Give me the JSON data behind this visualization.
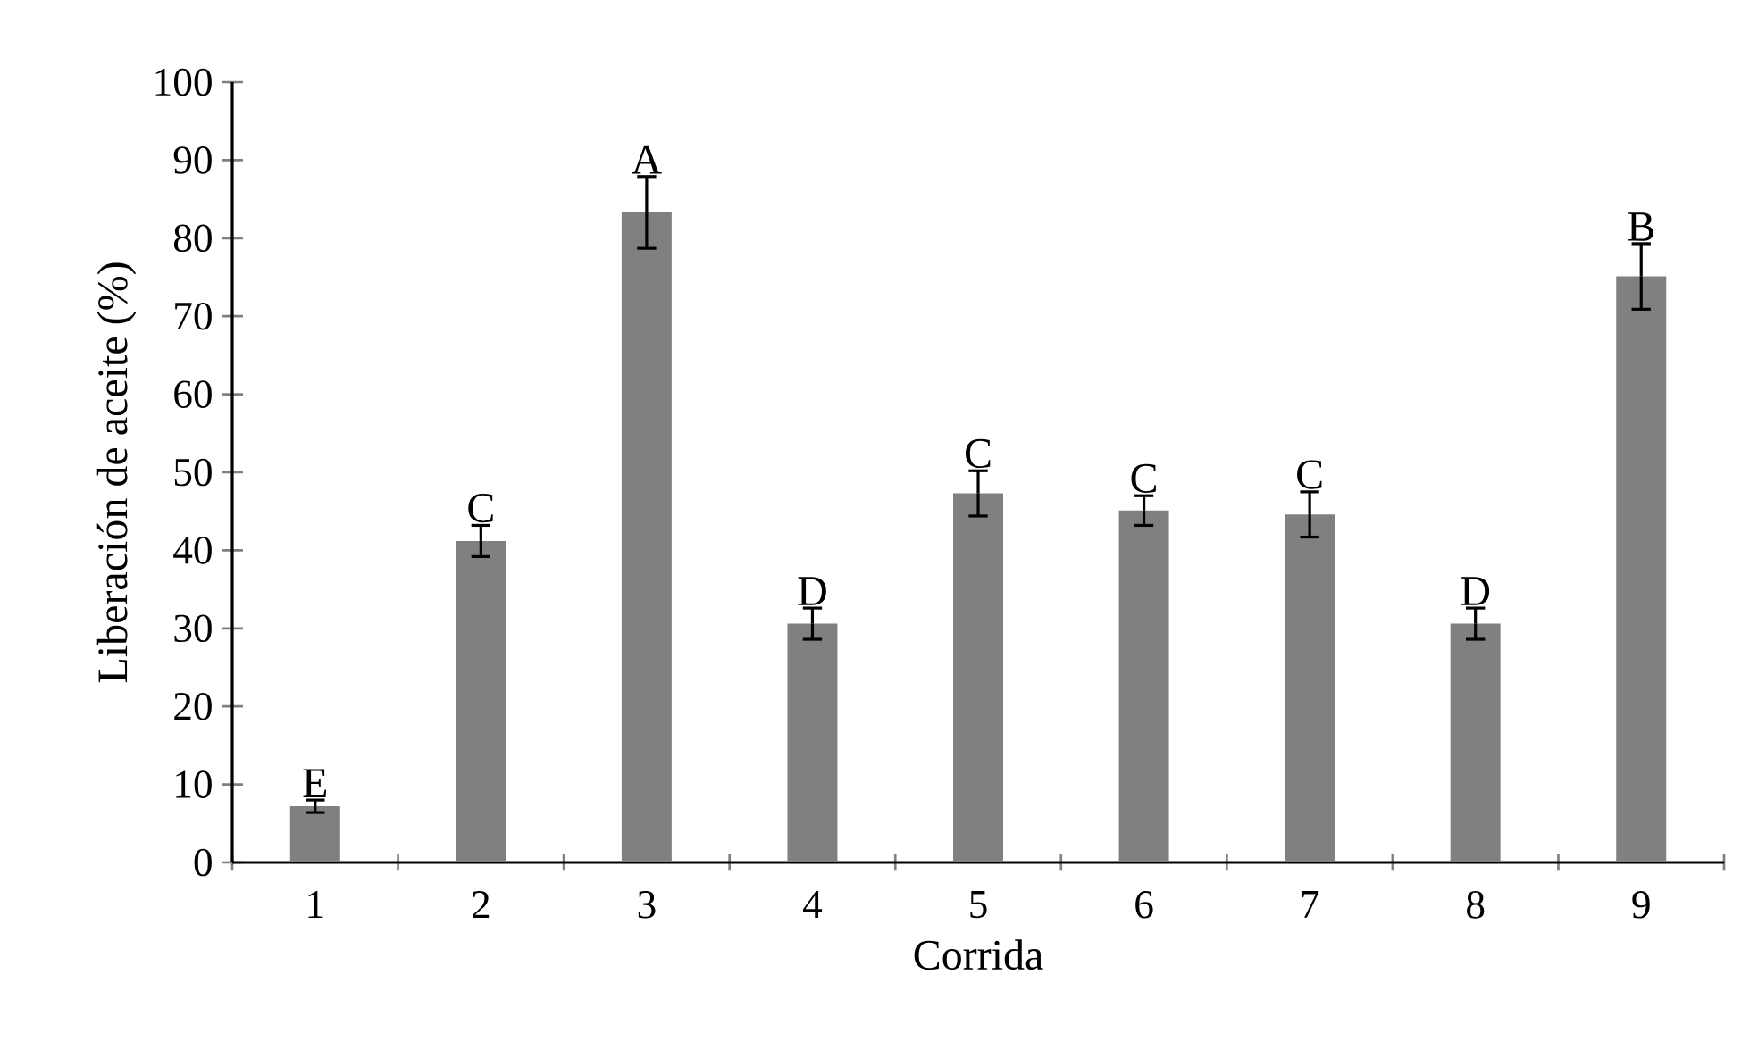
{
  "chart_data": {
    "type": "bar",
    "xlabel": "Corrida",
    "ylabel": "Liberación de aceite (%)",
    "categories": [
      "1",
      "2",
      "3",
      "4",
      "5",
      "6",
      "7",
      "8",
      "9"
    ],
    "values": [
      7.2,
      41.2,
      83.3,
      30.6,
      47.3,
      45.1,
      44.6,
      30.6,
      75.1
    ],
    "errors": [
      0.8,
      2.0,
      4.6,
      2.0,
      2.9,
      1.9,
      2.9,
      2.0,
      4.2
    ],
    "color": "#808080",
    "ylim": [
      0,
      100
    ],
    "yticks": [
      0,
      10,
      20,
      30,
      40,
      50,
      60,
      70,
      80,
      90,
      100
    ],
    "annotations": [
      {
        "text": "E",
        "x": "1",
        "y": 8.0
      },
      {
        "text": "C",
        "x": "2",
        "y": 43.2
      },
      {
        "text": "A",
        "x": "3",
        "y": 87.9
      },
      {
        "text": "D",
        "x": "4",
        "y": 32.6
      },
      {
        "text": "C",
        "x": "5",
        "y": 50.2
      },
      {
        "text": "C",
        "x": "6",
        "y": 47.0
      },
      {
        "text": "C",
        "x": "7",
        "y": 47.5
      },
      {
        "text": "D",
        "x": "8",
        "y": 32.6
      },
      {
        "text": "B",
        "x": "9",
        "y": 79.3
      }
    ]
  }
}
